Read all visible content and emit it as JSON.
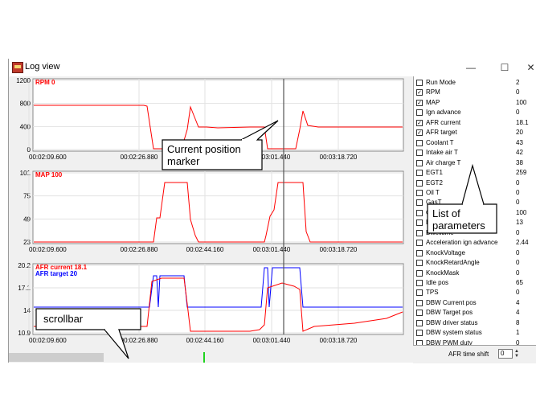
{
  "window": {
    "title": "Log view",
    "minimize_glyph": "—",
    "maximize_glyph": "☐",
    "close_glyph": "✕"
  },
  "charts": [
    {
      "series": [
        {
          "name": "RPM",
          "value": "0",
          "color": "#ff0000"
        }
      ],
      "yticks": [
        "1200",
        "800",
        "400",
        "0"
      ],
      "xticks": [
        "00:02:09.600",
        "00:02:26.880",
        "00:02:44.160",
        "00:03:01.440",
        "00:03:18.720"
      ]
    },
    {
      "series": [
        {
          "name": "MAP",
          "value": "100",
          "color": "#ff0000"
        }
      ],
      "yticks": [
        "101",
        "75",
        "49",
        "23"
      ],
      "xticks": [
        "00:02:09.600",
        "00:02:26.880",
        "00:02:44.160",
        "00:03:01.440",
        "00:03:18.720"
      ]
    },
    {
      "series": [
        {
          "name": "AFR current",
          "value": "18.1",
          "color": "#ff0000"
        },
        {
          "name": "AFR target",
          "value": "20",
          "color": "#0000ff"
        }
      ],
      "yticks": [
        "20.2",
        "17.1",
        "14",
        "10.9"
      ],
      "xticks": [
        "00:02:09.600",
        "00:02:26.880",
        "00:02:44.160",
        "00:03:01.440",
        "00:03:18.720"
      ]
    }
  ],
  "parameters": [
    {
      "name": "Run Mode",
      "value": "2",
      "checked": false
    },
    {
      "name": "RPM",
      "value": "0",
      "checked": true
    },
    {
      "name": "MAP",
      "value": "100",
      "checked": true
    },
    {
      "name": "Ign advance",
      "value": "0",
      "checked": false
    },
    {
      "name": "AFR current",
      "value": "18.1",
      "checked": true
    },
    {
      "name": "AFR target",
      "value": "20",
      "checked": true
    },
    {
      "name": "Coolant T",
      "value": "43",
      "checked": false
    },
    {
      "name": "Intake air T",
      "value": "42",
      "checked": false
    },
    {
      "name": "Air charge T",
      "value": "38",
      "checked": false
    },
    {
      "name": "EGT1",
      "value": "259",
      "checked": false
    },
    {
      "name": "EGT2",
      "value": "0",
      "checked": false
    },
    {
      "name": "Oil T",
      "value": "0",
      "checked": false
    },
    {
      "name": "GasT",
      "value": "0",
      "checked": false
    },
    {
      "name": "O",
      "value": "100",
      "checked": false
    },
    {
      "name": "B",
      "value": "13",
      "checked": false
    },
    {
      "name": "Dwelltime",
      "value": "0",
      "checked": false
    },
    {
      "name": "Acceleration ign advance",
      "value": "2.44",
      "checked": false
    },
    {
      "name": "KnockVoltage",
      "value": "0",
      "checked": false
    },
    {
      "name": "KnockRetardAngle",
      "value": "0",
      "checked": false
    },
    {
      "name": "KnockMask",
      "value": "0",
      "checked": false
    },
    {
      "name": "Idle pos",
      "value": "65",
      "checked": false
    },
    {
      "name": "TPS",
      "value": "0",
      "checked": false
    },
    {
      "name": "DBW Current pos",
      "value": "4",
      "checked": false
    },
    {
      "name": "DBW Target pos",
      "value": "4",
      "checked": false
    },
    {
      "name": "DBW driver status",
      "value": "8",
      "checked": false
    },
    {
      "name": "DBW system status",
      "value": "1",
      "checked": false
    },
    {
      "name": "DBW PWM duty",
      "value": "0",
      "checked": false
    }
  ],
  "afr_time_shift": {
    "label": "AFR time shift",
    "value": "0"
  },
  "callouts": [
    {
      "text_lines": [
        "Current position",
        "marker"
      ]
    },
    {
      "text_lines": [
        "List of",
        "parameters"
      ]
    },
    {
      "text_lines": [
        "scrollbar"
      ]
    }
  ],
  "colors": {
    "red_trace": "#ff0000",
    "blue_trace": "#0000ff",
    "cursor": "#555555"
  }
}
